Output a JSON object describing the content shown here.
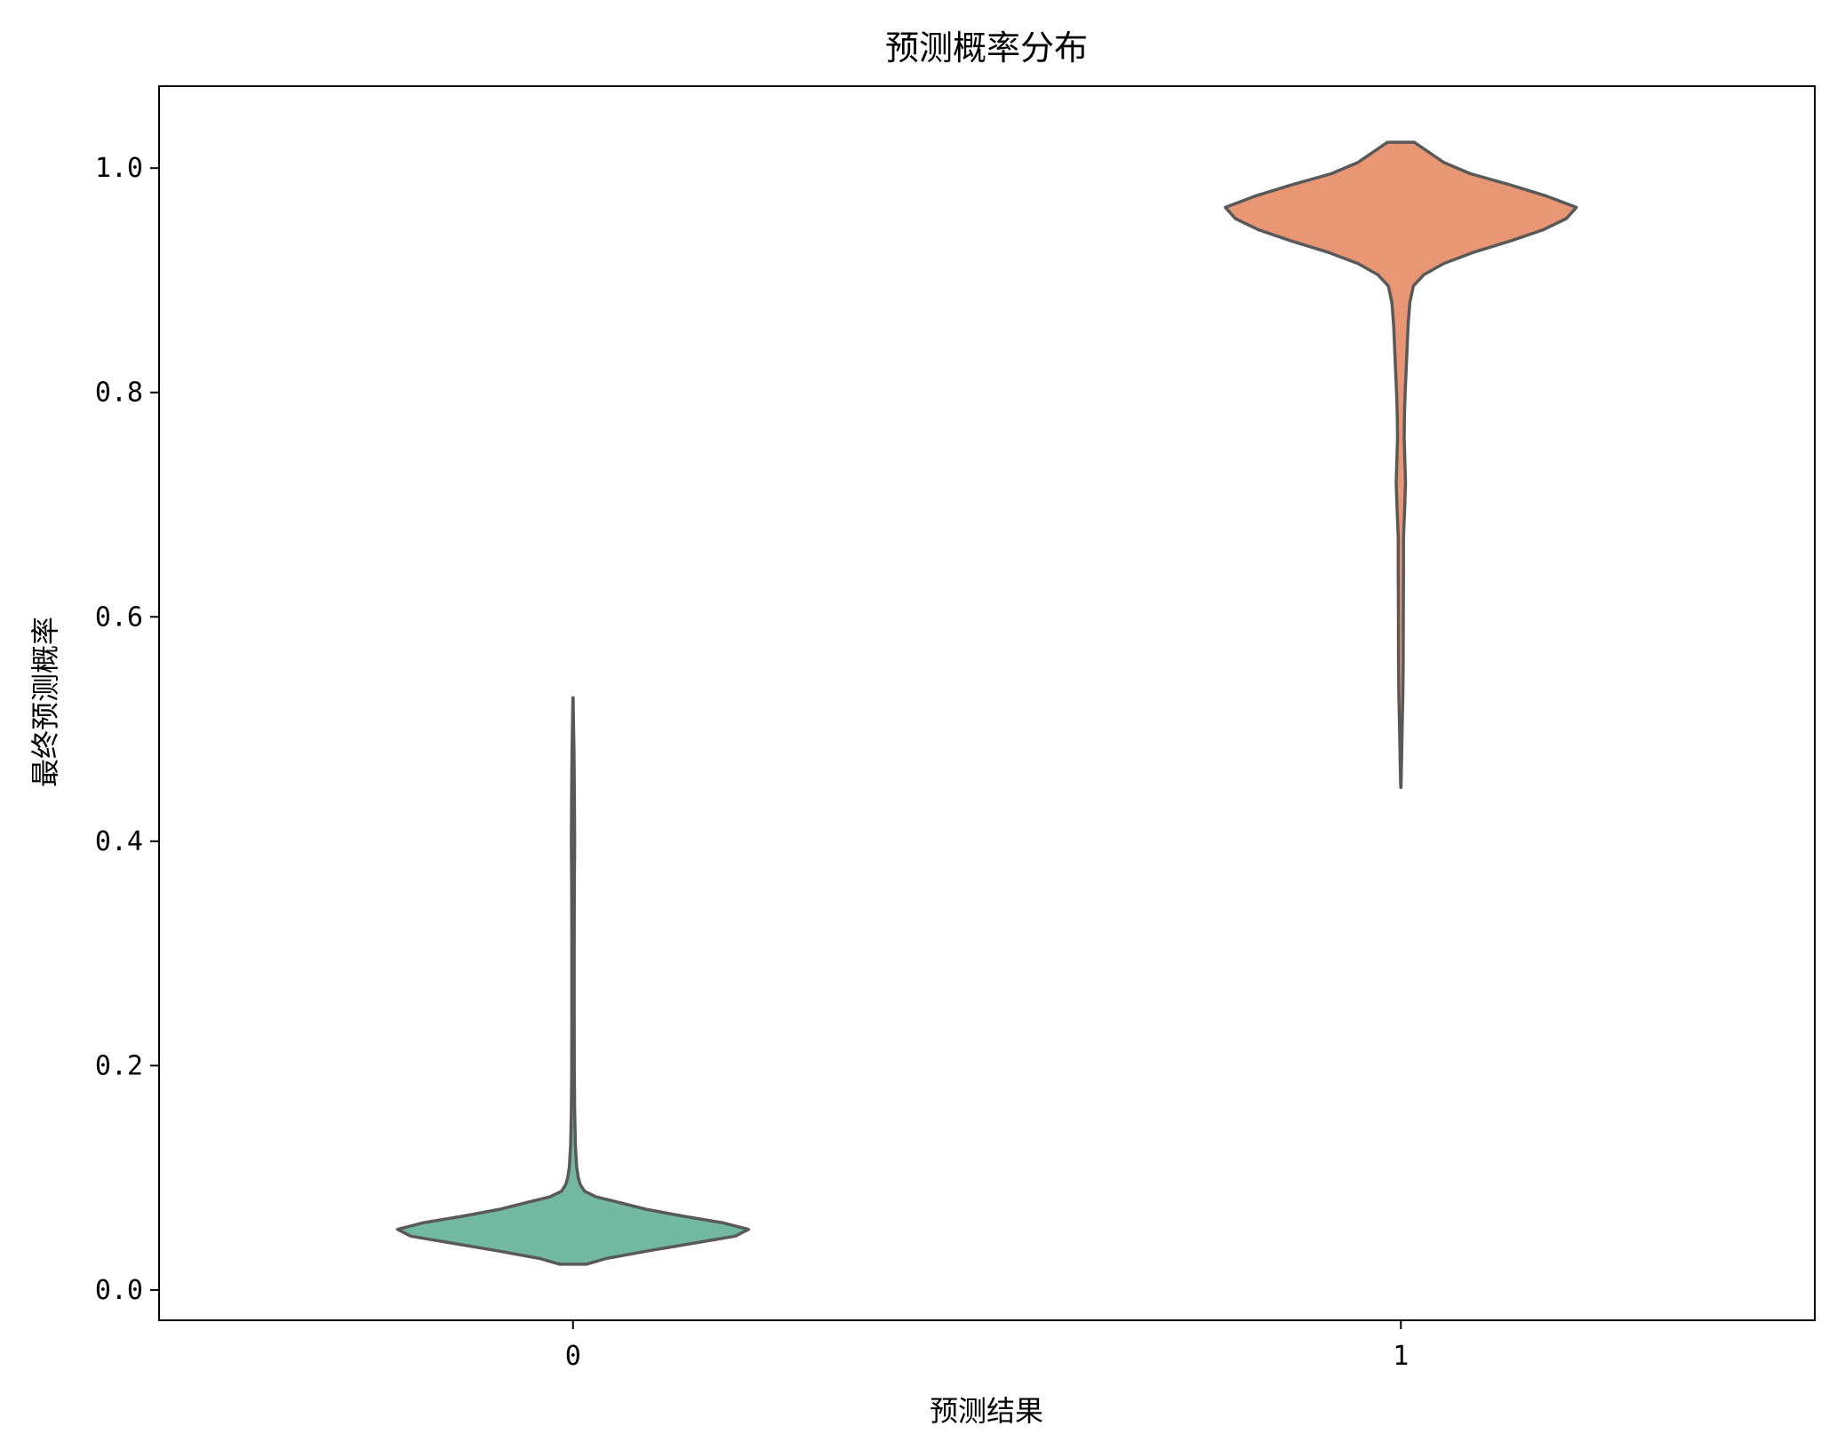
{
  "chart_data": {
    "type": "violin",
    "title": "预测概率分布",
    "xlabel": "预测结果",
    "ylabel": "最终预测概率",
    "categories": [
      "0",
      "1"
    ],
    "ylim": [
      -0.027,
      1.073
    ],
    "y_ticks": [
      {
        "value": 0.0,
        "label": "0.0"
      },
      {
        "value": 0.2,
        "label": "0.2"
      },
      {
        "value": 0.4,
        "label": "0.4"
      },
      {
        "value": 0.6,
        "label": "0.6"
      },
      {
        "value": 0.8,
        "label": "0.8"
      },
      {
        "value": 1.0,
        "label": "1.0"
      }
    ],
    "grid": false,
    "line_color": "#595959",
    "series": [
      {
        "category": "0",
        "color": "#73b8a1",
        "profile": [
          [
            0.023,
            0.04
          ],
          [
            0.028,
            0.1
          ],
          [
            0.035,
            0.23
          ],
          [
            0.042,
            0.37
          ],
          [
            0.048,
            0.49
          ],
          [
            0.054,
            0.53
          ],
          [
            0.06,
            0.45
          ],
          [
            0.066,
            0.33
          ],
          [
            0.072,
            0.22
          ],
          [
            0.078,
            0.14
          ],
          [
            0.083,
            0.07
          ],
          [
            0.088,
            0.035
          ],
          [
            0.094,
            0.022
          ],
          [
            0.1,
            0.016
          ],
          [
            0.11,
            0.011
          ],
          [
            0.13,
            0.007
          ],
          [
            0.16,
            0.005
          ],
          [
            0.2,
            0.004
          ],
          [
            0.25,
            0.0035
          ],
          [
            0.3,
            0.0035
          ],
          [
            0.35,
            0.004
          ],
          [
            0.4,
            0.005
          ],
          [
            0.43,
            0.0045
          ],
          [
            0.46,
            0.0035
          ],
          [
            0.48,
            0.003
          ],
          [
            0.5,
            0.0018
          ],
          [
            0.528,
            0.0005
          ]
        ]
      },
      {
        "category": "1",
        "color": "#e89673",
        "profile": [
          [
            0.448,
            0.0005
          ],
          [
            0.47,
            0.002
          ],
          [
            0.5,
            0.004
          ],
          [
            0.53,
            0.006
          ],
          [
            0.56,
            0.007
          ],
          [
            0.6,
            0.0075
          ],
          [
            0.64,
            0.0078
          ],
          [
            0.67,
            0.008
          ],
          [
            0.7,
            0.012
          ],
          [
            0.72,
            0.014
          ],
          [
            0.74,
            0.012
          ],
          [
            0.76,
            0.01
          ],
          [
            0.78,
            0.011
          ],
          [
            0.8,
            0.013
          ],
          [
            0.82,
            0.016
          ],
          [
            0.84,
            0.019
          ],
          [
            0.86,
            0.022
          ],
          [
            0.88,
            0.027
          ],
          [
            0.895,
            0.038
          ],
          [
            0.905,
            0.07
          ],
          [
            0.915,
            0.13
          ],
          [
            0.925,
            0.22
          ],
          [
            0.935,
            0.33
          ],
          [
            0.945,
            0.43
          ],
          [
            0.955,
            0.5
          ],
          [
            0.965,
            0.53
          ],
          [
            0.975,
            0.44
          ],
          [
            0.985,
            0.33
          ],
          [
            0.995,
            0.21
          ],
          [
            1.005,
            0.13
          ],
          [
            1.015,
            0.08
          ],
          [
            1.023,
            0.04
          ]
        ]
      }
    ]
  }
}
